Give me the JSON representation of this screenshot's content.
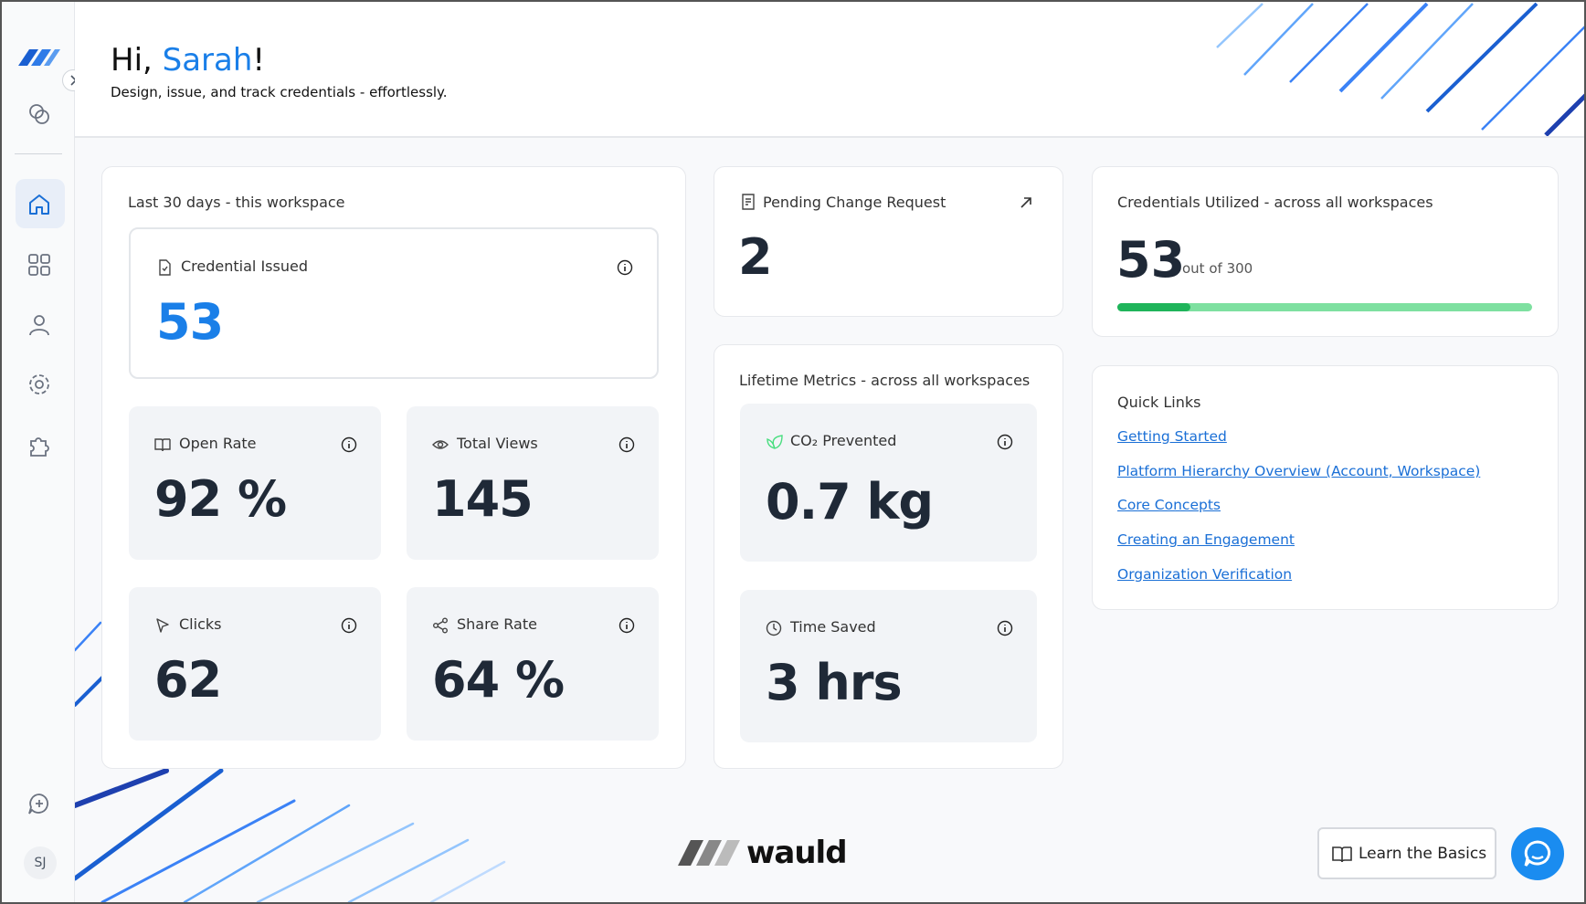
{
  "sidebar": {
    "avatar": "SJ"
  },
  "header": {
    "greeting": "Hi,",
    "name": "Sarah",
    "exclaim": "!",
    "subtitle": "Design, issue, and track credentials - effortlessly."
  },
  "workspace_metrics": {
    "title": "Last 30 days - this workspace",
    "tiles": [
      {
        "label": "Credential Issued",
        "value": "53"
      },
      {
        "label": "Open Rate",
        "value": "92 %"
      },
      {
        "label": "Total Views",
        "value": "145"
      },
      {
        "label": "Clicks",
        "value": "62"
      },
      {
        "label": "Share Rate",
        "value": "64 %"
      }
    ]
  },
  "pending": {
    "label": "Pending Change Request",
    "value": "2"
  },
  "lifetime": {
    "title": "Lifetime Metrics - across all workspaces",
    "tiles": [
      {
        "label": "CO₂ Prevented",
        "value": "0.7 kg"
      },
      {
        "label": "Time Saved",
        "value": "3 hrs"
      }
    ]
  },
  "utilization": {
    "title": "Credentials Utilized - across all workspaces",
    "used": 53,
    "total_prefix": "out of",
    "total": 300
  },
  "quick_links": {
    "title": "Quick Links",
    "links": [
      "Getting Started",
      "Platform Hierarchy Overview (Account, Workspace)",
      "Core Concepts",
      "Creating an Engagement",
      "Organization Verification"
    ]
  },
  "footer": {
    "brand": "wauld",
    "button": "Learn the Basics"
  }
}
